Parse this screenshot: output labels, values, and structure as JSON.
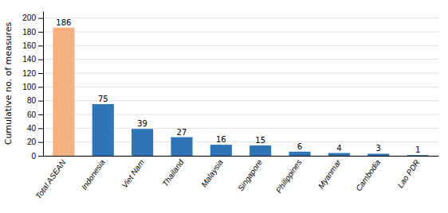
{
  "chart_data": {
    "type": "bar",
    "categories": [
      "Total ASEAN",
      "Indonesia",
      "Viet Nam",
      "Thailand",
      "Malaysia",
      "Singapore",
      "Philippines",
      "Myanmar",
      "Cambodia",
      "Lao PDR"
    ],
    "values": [
      186,
      75,
      39,
      27,
      16,
      15,
      6,
      4,
      3,
      1
    ],
    "colors": [
      "#f4b183",
      "#2e75b6",
      "#2e75b6",
      "#2e75b6",
      "#2e75b6",
      "#2e75b6",
      "#2e75b6",
      "#2e75b6",
      "#2e75b6",
      "#2e75b6"
    ],
    "ylabel": "Cumulative no. of measures",
    "ylim": [
      0,
      210
    ],
    "yticks": [
      0,
      20,
      40,
      60,
      80,
      100,
      120,
      140,
      160,
      180,
      200
    ],
    "grid": true,
    "data_labels": true
  }
}
